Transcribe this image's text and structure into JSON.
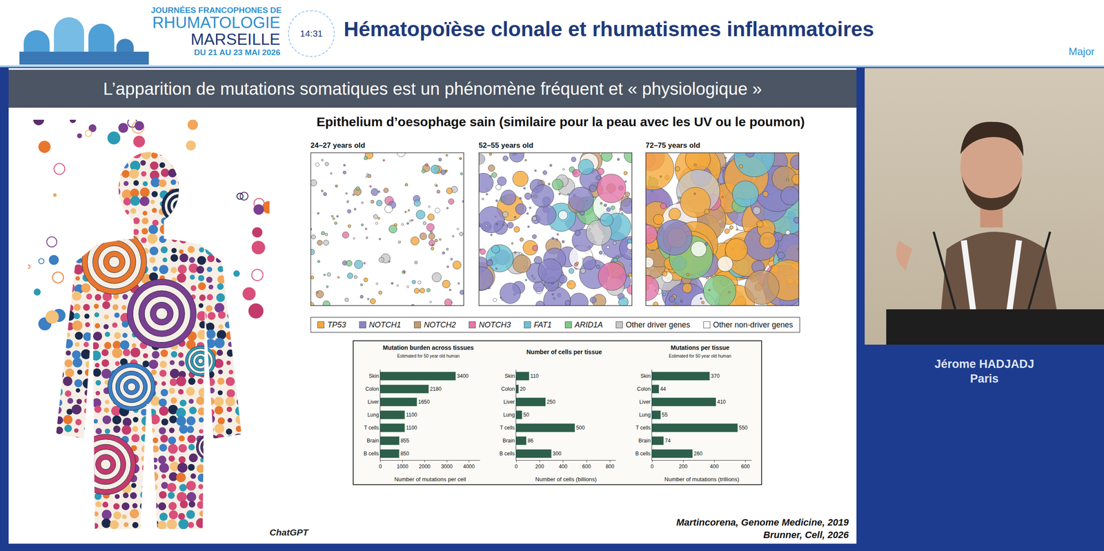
{
  "header": {
    "event": [
      "JOURNÉES FRANCOPHONES DE",
      "RHUMATOLOGIE",
      "MARSEILLE",
      "DU 21 AU 23 MAI 2026"
    ],
    "time": "14:31",
    "title": "Hématopoïèse clonale et rhumatismes inflammatoires",
    "session": "Major"
  },
  "slide": {
    "title": "L’apparition de mutations somatiques est un phénomène fréquent et « physiologique »",
    "figure_credit": "ChatGPT",
    "esophagus": {
      "title": "Epithelium d’oesophage sain (similaire pour la peau avec les UV ou le poumon)",
      "panels": [
        "24–27 years old",
        "52–55 years old",
        "72–75 years old"
      ],
      "legend": [
        {
          "name": "TP53",
          "color": "#f4a93c"
        },
        {
          "name": "NOTCH1",
          "color": "#8a84c6"
        },
        {
          "name": "NOTCH2",
          "color": "#c49a6c"
        },
        {
          "name": "NOTCH3",
          "color": "#e377a8"
        },
        {
          "name": "FAT1",
          "color": "#6cc2d4"
        },
        {
          "name": "ARID1A",
          "color": "#7ec98a"
        },
        {
          "name": "Other driver genes",
          "color": "#c8c8c8"
        },
        {
          "name": "Other non-driver genes",
          "color": "#ffffff"
        }
      ]
    },
    "references": [
      "Martincorena, Genome Medicine, 2019",
      "Brunner, Cell, 2026"
    ]
  },
  "speaker": {
    "name": "Jérome HADJADJ",
    "city": "Paris"
  },
  "chart_data": [
    {
      "type": "bar",
      "title": "Mutation burden across tissues",
      "subtitle": "Estimated for 50 year old human",
      "x_label": "Number of mutations per cell",
      "categories": [
        "Skin",
        "Colon",
        "Liver",
        "Lung",
        "T cells",
        "Brain",
        "B cells"
      ],
      "values": [
        3400,
        2180,
        1650,
        1100,
        1100,
        855,
        850
      ],
      "color": "#2d5f4a",
      "orientation": "horizontal",
      "xlim": [
        0,
        4500
      ],
      "xticks": [
        0,
        1000,
        2000,
        3000,
        4000
      ],
      "data_labels": true,
      "grid": false
    },
    {
      "type": "bar",
      "title": "Number of cells per tissue",
      "x_label": "Number of cells (billions)",
      "categories": [
        "Skin",
        "Colon",
        "Liver",
        "Lung",
        "T cells",
        "Brain",
        "B cells"
      ],
      "values": [
        110,
        20,
        250,
        50,
        500,
        86,
        300
      ],
      "color": "#2d5f4a",
      "orientation": "horizontal",
      "xlim": [
        0,
        850
      ],
      "xticks": [
        0,
        200,
        400,
        600,
        800
      ],
      "data_labels": true,
      "grid": false
    },
    {
      "type": "bar",
      "title": "Mutations per tissue",
      "subtitle": "Estimated for 50 year old human",
      "x_label": "Number of mutations (trillions)",
      "categories": [
        "Skin",
        "Colon",
        "Liver",
        "Lung",
        "T cells",
        "Brain",
        "B cells"
      ],
      "values": [
        370,
        44,
        410,
        55,
        550,
        74,
        260
      ],
      "color": "#2d5f4a",
      "orientation": "horizontal",
      "xlim": [
        0,
        640
      ],
      "xticks": [
        0,
        200,
        400,
        600
      ],
      "data_labels": true,
      "grid": false
    }
  ]
}
